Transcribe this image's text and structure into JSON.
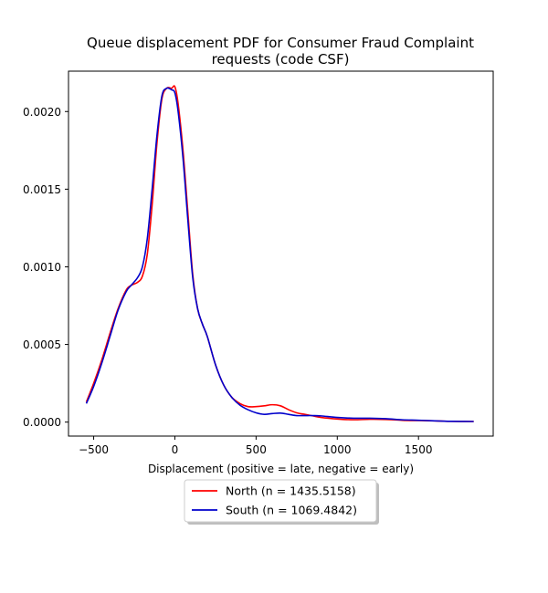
{
  "chart_data": {
    "type": "line",
    "title_lines": [
      "Queue displacement PDF for Consumer Fraud Complaint",
      "requests (code CSF)"
    ],
    "xlabel": "Displacement (positive = late, negative = early)",
    "ylabel": "",
    "xlim": [
      -655,
      1960
    ],
    "ylim": [
      -9e-05,
      0.00226
    ],
    "xticks": [
      -500,
      0,
      500,
      1000,
      1500
    ],
    "xtick_labels": [
      "−500",
      "0",
      "500",
      "1000",
      "1500"
    ],
    "yticks": [
      0.0,
      0.0005,
      0.001,
      0.0015,
      0.002
    ],
    "ytick_labels": [
      "0.0000",
      "0.0005",
      "0.0010",
      "0.0015",
      "0.0020"
    ],
    "grid": false,
    "legend_position": "below-center",
    "series": [
      {
        "name": "North (n = 1435.5158)",
        "color": "#ff0000",
        "x": [
          -545,
          -500,
          -450,
          -400,
          -350,
          -300,
          -270,
          -230,
          -200,
          -170,
          -140,
          -110,
          -80,
          -50,
          -20,
          0,
          20,
          50,
          80,
          110,
          140,
          170,
          200,
          250,
          300,
          350,
          400,
          450,
          500,
          550,
          600,
          650,
          700,
          750,
          800,
          850,
          900,
          1000,
          1100,
          1200,
          1300,
          1400,
          1500,
          1600,
          1700,
          1840
        ],
        "y": [
          0.00013,
          0.00025,
          0.0004,
          0.00057,
          0.00073,
          0.00085,
          0.00088,
          0.0009,
          0.00094,
          0.00108,
          0.0014,
          0.0018,
          0.00208,
          0.00215,
          0.00215,
          0.00216,
          0.00205,
          0.00175,
          0.00135,
          0.00095,
          0.00073,
          0.00063,
          0.00055,
          0.00037,
          0.00024,
          0.00016,
          0.00012,
          0.0001,
          0.0001,
          0.000105,
          0.000112,
          0.000105,
          8e-05,
          6e-05,
          5e-05,
          4e-05,
          3e-05,
          2e-05,
          1.5e-05,
          1.8e-05,
          1.7e-05,
          1.2e-05,
          1e-05,
          8e-06,
          5e-06,
          4e-06
        ]
      },
      {
        "name": "South (n = 1069.4842)",
        "color": "#0000cc",
        "x": [
          -545,
          -500,
          -450,
          -400,
          -350,
          -300,
          -270,
          -230,
          -200,
          -170,
          -140,
          -110,
          -80,
          -50,
          -20,
          0,
          20,
          50,
          80,
          110,
          140,
          170,
          200,
          250,
          300,
          350,
          400,
          450,
          500,
          550,
          600,
          650,
          700,
          750,
          800,
          850,
          900,
          1000,
          1100,
          1200,
          1300,
          1400,
          1500,
          1600,
          1700,
          1840
        ],
        "y": [
          0.00012,
          0.00023,
          0.00038,
          0.00055,
          0.00072,
          0.00084,
          0.00088,
          0.00093,
          0.001,
          0.00118,
          0.0015,
          0.00185,
          0.0021,
          0.00215,
          0.00214,
          0.00212,
          0.002,
          0.0017,
          0.0013,
          0.00093,
          0.00073,
          0.00063,
          0.00055,
          0.00037,
          0.00024,
          0.00016,
          0.00011,
          8e-05,
          6e-05,
          5e-05,
          5.5e-05,
          5.8e-05,
          5e-05,
          4.2e-05,
          4.2e-05,
          4.2e-05,
          4e-05,
          3e-05,
          2.5e-05,
          2.5e-05,
          2.2e-05,
          1.5e-05,
          1.2e-05,
          8e-06,
          5e-06,
          4e-06
        ]
      }
    ]
  }
}
